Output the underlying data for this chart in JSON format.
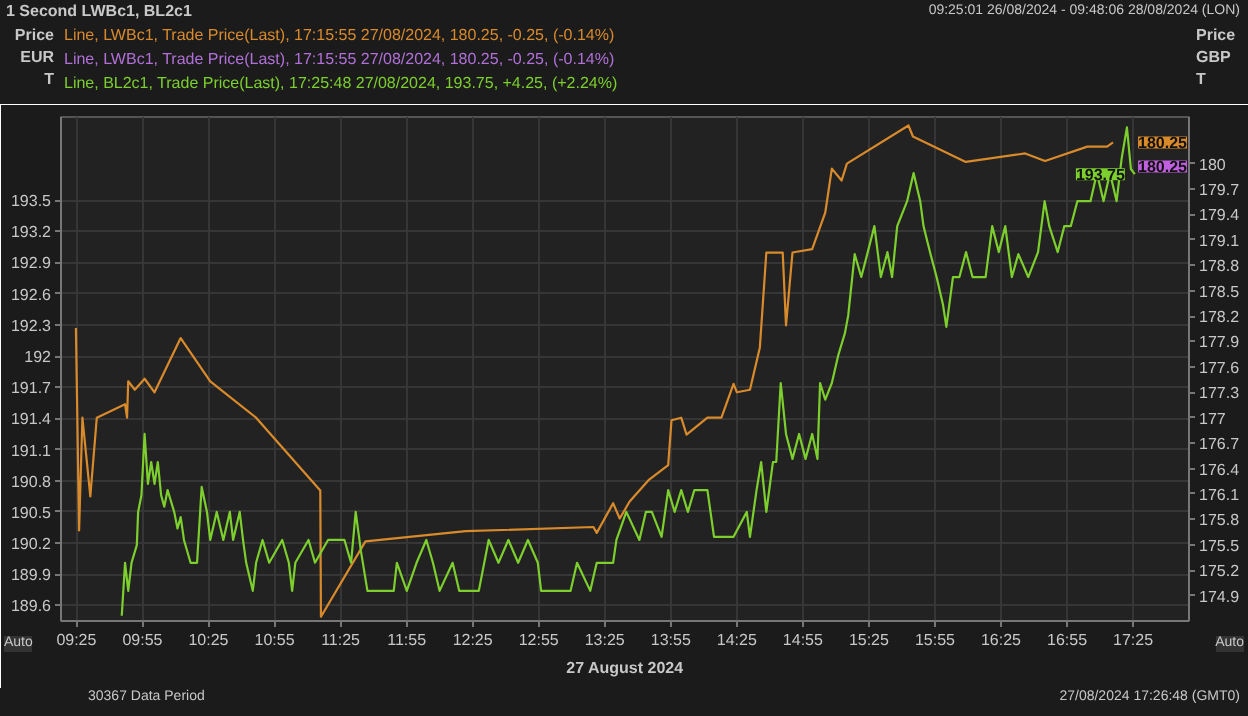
{
  "chart_data": {
    "type": "line",
    "title": "1 Second LWBc1, BL2c1",
    "subtitle": "09:25:01 26/08/2024 - 09:48:06 28/08/2024 (LON)",
    "xlabel": "27 August 2024",
    "ylabel": "Price EUR T",
    "y2label": "Price GBP T",
    "xlim": [
      9.3,
      17.84
    ],
    "ylim": [
      189.45,
      194.3
    ],
    "y2lim": [
      174.6,
      180.55
    ],
    "xticks": [
      {
        "value": 9.41667,
        "label": "09:25"
      },
      {
        "value": 9.91667,
        "label": "09:55"
      },
      {
        "value": 10.41667,
        "label": "10:25"
      },
      {
        "value": 10.91667,
        "label": "10:55"
      },
      {
        "value": 11.41667,
        "label": "11:25"
      },
      {
        "value": 11.91667,
        "label": "11:55"
      },
      {
        "value": 12.41667,
        "label": "12:25"
      },
      {
        "value": 12.91667,
        "label": "12:55"
      },
      {
        "value": 13.41667,
        "label": "13:25"
      },
      {
        "value": 13.91667,
        "label": "13:55"
      },
      {
        "value": 14.41667,
        "label": "14:25"
      },
      {
        "value": 14.91667,
        "label": "14:55"
      },
      {
        "value": 15.41667,
        "label": "15:25"
      },
      {
        "value": 15.91667,
        "label": "15:55"
      },
      {
        "value": 16.41667,
        "label": "16:25"
      },
      {
        "value": 16.91667,
        "label": "16:55"
      },
      {
        "value": 17.41667,
        "label": "17:25"
      }
    ],
    "yticks": [
      189.6,
      189.9,
      190.2,
      190.5,
      190.8,
      191.1,
      191.4,
      191.7,
      192,
      192.3,
      192.6,
      192.9,
      193.2,
      193.5
    ],
    "y2ticks": [
      174.9,
      175.2,
      175.5,
      175.8,
      176.1,
      176.4,
      176.7,
      177,
      177.3,
      177.6,
      177.9,
      178.2,
      178.5,
      178.8,
      179.1,
      179.4,
      179.7,
      180
    ],
    "grid": true,
    "legend": "top",
    "series": [
      {
        "name": "Line, LWBc1, Trade Price(Last), 17:15:55 27/08/2024, 180.25, -0.25, (-0.14%)",
        "color": "#d98a2b",
        "axis": "y2",
        "x": [
          9.413,
          9.437,
          9.462,
          9.522,
          9.571,
          9.785,
          9.8,
          9.809,
          9.859,
          9.933,
          10.008,
          10.206,
          10.43,
          10.777,
          11.263,
          11.268,
          11.605,
          12.364,
          13.331,
          13.356,
          13.48,
          13.53,
          13.605,
          13.753,
          13.897,
          13.922,
          13.996,
          14.036,
          14.194,
          14.3,
          14.392,
          14.417,
          14.516,
          14.591,
          14.64,
          14.764,
          14.789,
          14.838,
          14.987,
          15.086,
          15.136,
          15.21,
          15.25,
          15.716,
          15.75,
          16.15,
          16.6,
          16.75,
          17.07,
          17.22,
          17.265
        ],
        "values": [
          178.06,
          175.67,
          177.0,
          176.07,
          177.0,
          177.16,
          177.0,
          177.43,
          177.33,
          177.46,
          177.3,
          177.94,
          177.43,
          177.0,
          176.14,
          174.65,
          175.54,
          175.66,
          175.71,
          175.64,
          175.99,
          175.81,
          176.01,
          176.27,
          176.44,
          176.97,
          177.0,
          176.8,
          177.0,
          177.0,
          177.4,
          177.3,
          177.33,
          177.83,
          178.95,
          178.95,
          178.09,
          178.95,
          178.99,
          179.42,
          179.94,
          179.8,
          180.0,
          180.45,
          180.32,
          180.02,
          180.12,
          180.03,
          180.2,
          180.2,
          180.25
        ],
        "value_labels": [
          null,
          null,
          null,
          null,
          null,
          null,
          null,
          null,
          null,
          null,
          null,
          null,
          null,
          null,
          null,
          null,
          null,
          null,
          null,
          null,
          null,
          null,
          null,
          null,
          null,
          null,
          null,
          null,
          null,
          null,
          null,
          null,
          null,
          null,
          null,
          null,
          null,
          null,
          null,
          null,
          null,
          null,
          null,
          null,
          null,
          null,
          null,
          null,
          null,
          null,
          "180.25"
        ]
      },
      {
        "name": "Line, BL2c1, Trade Price(Last), 17:25:48 27/08/2024, 193.75, +4.25, (+2.24%)",
        "color": "#7ccf2c",
        "x": [
          9.76,
          9.785,
          9.809,
          9.834,
          9.874,
          9.884,
          9.909,
          9.933,
          9.958,
          9.983,
          10.008,
          10.033,
          10.058,
          10.082,
          10.107,
          10.157,
          10.182,
          10.206,
          10.231,
          10.281,
          10.33,
          10.365,
          10.405,
          10.43,
          10.479,
          10.529,
          10.578,
          10.603,
          10.653,
          10.678,
          10.702,
          10.752,
          10.777,
          10.826,
          10.876,
          10.975,
          11.025,
          11.05,
          11.074,
          11.174,
          11.223,
          11.322,
          11.446,
          11.496,
          11.531,
          11.571,
          11.62,
          11.819,
          11.843,
          11.918,
          11.992,
          12.066,
          12.116,
          12.166,
          12.265,
          12.315,
          12.463,
          12.538,
          12.612,
          12.687,
          12.761,
          12.835,
          12.91,
          12.935,
          13.158,
          13.207,
          13.307,
          13.356,
          13.48,
          13.505,
          13.58,
          13.679,
          13.728,
          13.773,
          13.847,
          13.897,
          13.946,
          13.996,
          14.046,
          14.095,
          14.194,
          14.244,
          14.392,
          14.492,
          14.516,
          14.566,
          14.601,
          14.64,
          14.69,
          14.715,
          14.749,
          14.789,
          14.838,
          14.888,
          14.937,
          14.987,
          15.027,
          15.047,
          15.086,
          15.136,
          15.185,
          15.235,
          15.26,
          15.309,
          15.359,
          15.408,
          15.458,
          15.507,
          15.557,
          15.592,
          15.631,
          15.706,
          15.755,
          15.805,
          15.83,
          15.879,
          15.929,
          15.978,
          16.003,
          16.053,
          16.102,
          16.152,
          16.201,
          16.3,
          16.35,
          16.4,
          16.449,
          16.499,
          16.548,
          16.623,
          16.697,
          16.747,
          16.782,
          16.846,
          16.896,
          16.945,
          16.995,
          17.094,
          17.143,
          17.193,
          17.242,
          17.292,
          17.33,
          17.37,
          17.4,
          17.43
        ],
        "values": [
          189.5,
          190.01,
          189.74,
          190.01,
          190.18,
          190.5,
          190.66,
          191.25,
          190.77,
          190.98,
          190.77,
          190.98,
          190.66,
          190.55,
          190.71,
          190.5,
          190.34,
          190.45,
          190.23,
          190.01,
          190.01,
          190.74,
          190.5,
          190.23,
          190.5,
          190.23,
          190.5,
          190.23,
          190.5,
          190.23,
          190.01,
          189.74,
          190.01,
          190.23,
          190.01,
          190.23,
          190.01,
          189.74,
          190.01,
          190.23,
          190.01,
          190.23,
          190.23,
          190.01,
          190.5,
          190.12,
          189.74,
          189.74,
          190.01,
          189.74,
          190.01,
          190.23,
          190.01,
          189.74,
          190.01,
          189.74,
          189.74,
          190.23,
          190.01,
          190.23,
          190.01,
          190.23,
          190.01,
          189.74,
          189.74,
          190.01,
          189.74,
          190.01,
          190.01,
          190.23,
          190.5,
          190.23,
          190.5,
          190.5,
          190.26,
          190.71,
          190.5,
          190.71,
          190.5,
          190.71,
          190.71,
          190.26,
          190.26,
          190.5,
          190.26,
          190.71,
          190.98,
          190.5,
          190.98,
          190.98,
          191.74,
          191.25,
          191.01,
          191.25,
          191.01,
          191.25,
          191.01,
          191.74,
          191.58,
          191.74,
          192.01,
          192.22,
          192.39,
          192.98,
          192.76,
          193.0,
          193.25,
          192.76,
          193.0,
          192.76,
          193.25,
          193.49,
          193.76,
          193.49,
          193.25,
          193.0,
          192.76,
          192.49,
          192.28,
          192.76,
          192.76,
          193.0,
          192.76,
          192.76,
          193.25,
          193.0,
          193.25,
          192.76,
          192.98,
          192.76,
          193.0,
          193.49,
          193.25,
          193.0,
          193.25,
          193.25,
          193.49,
          193.49,
          193.76,
          193.49,
          193.76,
          193.49,
          193.9,
          194.2,
          193.8,
          193.75
        ],
        "value_labels": [
          null,
          null,
          null,
          null,
          null,
          null,
          null,
          null,
          null,
          null,
          null,
          null,
          null,
          null,
          null,
          null,
          null,
          null,
          null,
          null,
          null,
          null,
          null,
          null,
          null,
          null,
          null,
          null,
          null,
          null,
          null,
          null,
          null,
          null,
          null,
          null,
          null,
          null,
          null,
          null,
          null,
          null,
          null,
          null,
          null,
          null,
          null,
          null,
          null,
          null,
          null,
          null,
          null,
          null,
          null,
          null,
          null,
          null,
          null,
          null,
          null,
          null,
          null,
          null,
          null,
          null,
          null,
          null,
          null,
          null,
          null,
          null,
          null,
          null,
          null,
          null,
          null,
          null,
          null,
          null,
          null,
          null,
          null,
          null,
          null,
          null,
          null,
          null,
          null,
          null,
          null,
          null,
          null,
          null,
          null,
          null,
          null,
          null,
          null,
          null,
          null,
          null,
          null,
          null,
          null,
          null,
          null,
          null,
          null,
          null,
          null,
          null,
          null,
          null,
          null,
          null,
          null,
          null,
          null,
          null,
          null,
          null,
          null,
          null,
          null,
          null,
          null,
          null,
          null,
          null,
          null,
          null,
          null,
          null,
          null,
          null,
          null,
          null,
          null,
          null,
          null,
          null,
          null,
          null,
          null,
          "193.75"
        ]
      }
    ],
    "annotations": [
      "Line, LWBc1, Trade Price(Last), 17:15:55 27/08/2024, 180.25, -0.25, (-0.14%)",
      "180.25",
      "30367 Data Period",
      "27/08/2024 17:26:48 (GMT0)",
      "Auto",
      "Auto"
    ]
  }
}
